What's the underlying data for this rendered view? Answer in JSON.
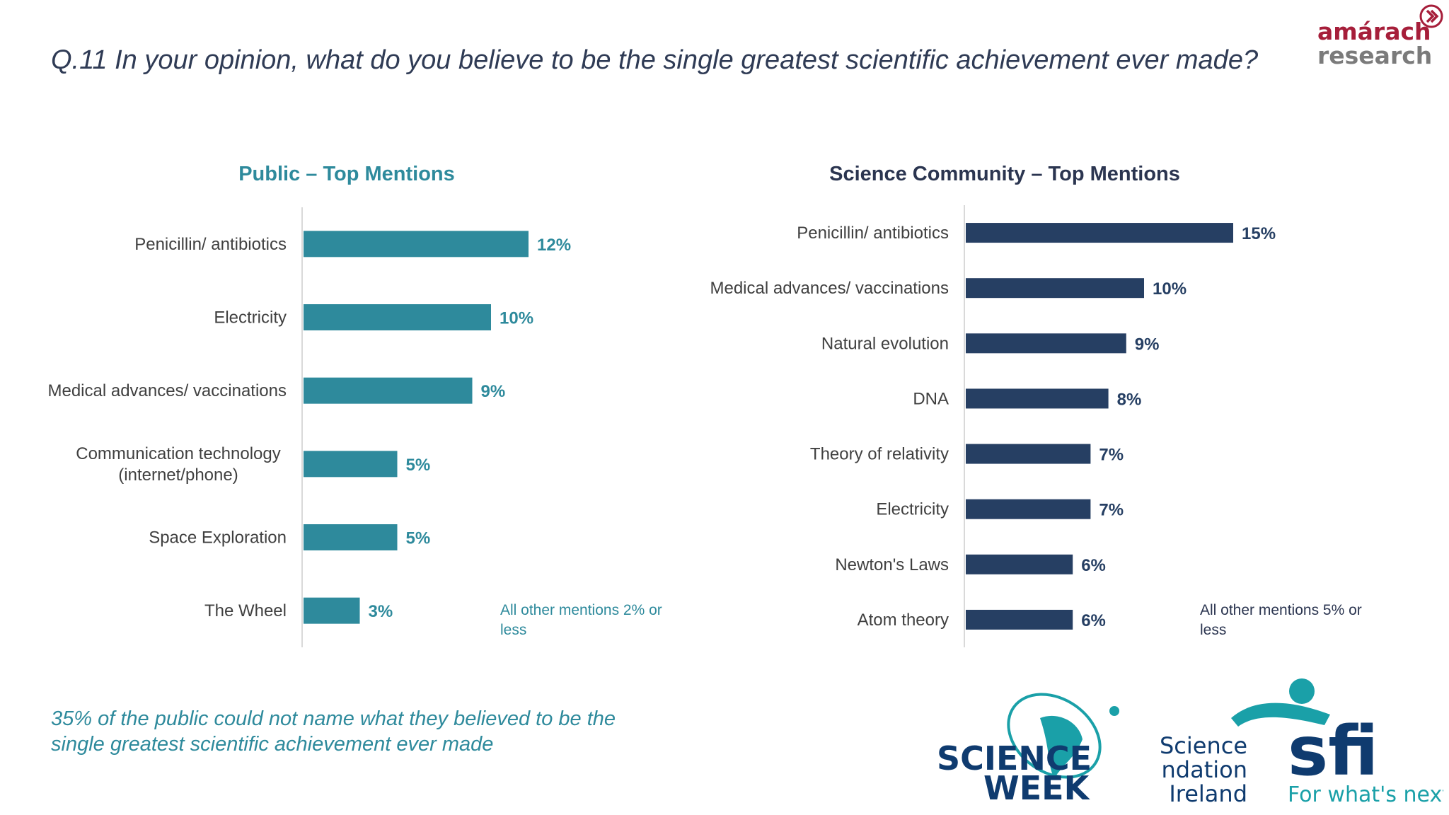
{
  "question": "Q.11 In your opinion, what do you believe to be the single greatest scientific achievement ever made?",
  "brand": {
    "line1": "amárach",
    "line2": "research"
  },
  "footnote": "35% of the public could not name what they believed to be the single greatest scientific achievement ever made",
  "logos": {
    "science_week": {
      "line1": "SCIENCE",
      "line2": "WEEK"
    },
    "sfi": {
      "line1": "Science",
      "line2": "Foundation",
      "line3": "Ireland",
      "mark": "sfi",
      "tagline": "For what's next"
    }
  },
  "colors": {
    "public": "#2e8a9c",
    "science": "#263f63",
    "question": "#2f3b55",
    "brand_red": "#a61e3a"
  },
  "chart_data": [
    {
      "type": "bar",
      "orientation": "horizontal",
      "title": "Public – Top Mentions",
      "categories": [
        "Penicillin/ antibiotics",
        "Electricity",
        "Medical advances/ vaccinations",
        "Communication technology (internet/phone)",
        "Space Exploration",
        "The Wheel"
      ],
      "category_lines": [
        [
          "Penicillin/ antibiotics"
        ],
        [
          "Electricity"
        ],
        [
          "Medical advances/ vaccinations"
        ],
        [
          "Communication technology",
          "(internet/phone)"
        ],
        [
          "Space Exploration"
        ],
        [
          "The Wheel"
        ]
      ],
      "values": [
        12,
        10,
        9,
        5,
        5,
        3
      ],
      "value_labels": [
        "12%",
        "10%",
        "9%",
        "5%",
        "5%",
        "3%"
      ],
      "unit": "%",
      "note": "All other mentions 2% or less"
    },
    {
      "type": "bar",
      "orientation": "horizontal",
      "title": "Science Community – Top Mentions",
      "categories": [
        "Penicillin/ antibiotics",
        "Medical advances/ vaccinations",
        "Natural evolution",
        "DNA",
        "Theory of relativity",
        "Electricity",
        "Newton's Laws",
        "Atom theory"
      ],
      "category_lines": [
        [
          "Penicillin/ antibiotics"
        ],
        [
          "Medical advances/ vaccinations"
        ],
        [
          "Natural evolution"
        ],
        [
          "DNA"
        ],
        [
          "Theory of relativity"
        ],
        [
          "Electricity"
        ],
        [
          "Newton's Laws"
        ],
        [
          "Atom theory"
        ]
      ],
      "values": [
        15,
        10,
        9,
        8,
        7,
        7,
        6,
        6
      ],
      "value_labels": [
        "15%",
        "10%",
        "9%",
        "8%",
        "7%",
        "7%",
        "6%",
        "6%"
      ],
      "unit": "%",
      "note": "All other mentions 5% or less"
    }
  ]
}
